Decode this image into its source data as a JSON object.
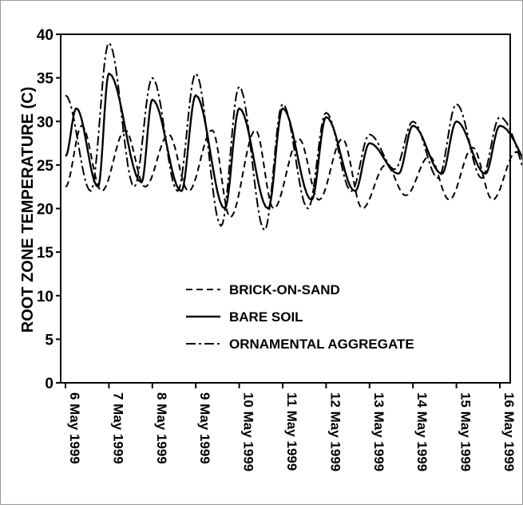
{
  "chart_data": {
    "type": "line",
    "title": "",
    "xlabel": "",
    "ylabel": "ROOT ZONE TEMPERATURE (C)",
    "ylim": [
      0,
      40
    ],
    "yticks": [
      "0",
      "5",
      "10",
      "15",
      "20",
      "25",
      "30",
      "35",
      "40"
    ],
    "xlim": [
      "1999-05-06",
      "1999-05-16"
    ],
    "xticks": [
      "6 May 1999",
      "7 May 1999",
      "8 May 1999",
      "9 May 1999",
      "10 May 1999",
      "11 May 1999",
      "12 May 1999",
      "13 May 1999",
      "14 May 1999",
      "15 May 1999",
      "16 May 1999"
    ],
    "grid": false,
    "legend_position": "center-left",
    "series": [
      {
        "name": "BRICK-ON-SAND",
        "line_style": "dashed",
        "peaks": [
          [
            "1999-05-06 00:00",
            22.5
          ],
          [
            "1999-05-06 09:00",
            29.5
          ],
          [
            "1999-05-06 20:00",
            22.0
          ],
          [
            "1999-05-07 09:00",
            29.0
          ],
          [
            "1999-05-07 20:00",
            22.5
          ],
          [
            "1999-05-08 09:00",
            28.5
          ],
          [
            "1999-05-08 20:00",
            22.0
          ],
          [
            "1999-05-09 09:00",
            29.0
          ],
          [
            "1999-05-09 19:00",
            19.0
          ],
          [
            "1999-05-10 09:00",
            29.0
          ],
          [
            "1999-05-10 19:00",
            20.0
          ],
          [
            "1999-05-11 09:00",
            28.0
          ],
          [
            "1999-05-11 20:00",
            21.0
          ],
          [
            "1999-05-12 09:00",
            28.0
          ],
          [
            "1999-05-12 20:00",
            20.0
          ],
          [
            "1999-05-13 09:00",
            25.0
          ],
          [
            "1999-05-13 20:00",
            21.5
          ],
          [
            "1999-05-14 09:00",
            26.0
          ],
          [
            "1999-05-14 20:00",
            21.0
          ],
          [
            "1999-05-15 09:00",
            27.0
          ],
          [
            "1999-05-15 20:00",
            21.0
          ],
          [
            "1999-05-16 09:00",
            26.5
          ],
          [
            "1999-05-16 23:00",
            21.0
          ]
        ]
      },
      {
        "name": "BARE SOIL",
        "line_style": "solid",
        "peaks": [
          [
            "1999-05-06 00:00",
            26.0
          ],
          [
            "1999-05-06 06:00",
            31.5
          ],
          [
            "1999-05-06 18:00",
            22.5
          ],
          [
            "1999-05-07 00:00",
            35.5
          ],
          [
            "1999-05-07 18:00",
            23.0
          ],
          [
            "1999-05-08 00:00",
            32.5
          ],
          [
            "1999-05-08 16:00",
            22.0
          ],
          [
            "1999-05-09 00:00",
            33.0
          ],
          [
            "1999-05-09 16:00",
            20.0
          ],
          [
            "1999-05-10 00:00",
            31.5
          ],
          [
            "1999-05-10 16:00",
            20.0
          ],
          [
            "1999-05-11 00:00",
            31.5
          ],
          [
            "1999-05-11 16:00",
            21.0
          ],
          [
            "1999-05-12 00:00",
            30.5
          ],
          [
            "1999-05-12 16:00",
            22.0
          ],
          [
            "1999-05-13 00:00",
            27.5
          ],
          [
            "1999-05-13 16:00",
            24.0
          ],
          [
            "1999-05-14 00:00",
            29.5
          ],
          [
            "1999-05-14 16:00",
            24.0
          ],
          [
            "1999-05-15 00:00",
            30.0
          ],
          [
            "1999-05-15 16:00",
            24.0
          ],
          [
            "1999-05-16 00:00",
            29.5
          ],
          [
            "1999-05-16 23:00",
            23.0
          ]
        ]
      },
      {
        "name": "ORNAMENTAL AGGREGATE",
        "line_style": "dash-dot",
        "peaks": [
          [
            "1999-05-06 00:00",
            33.0
          ],
          [
            "1999-05-06 14:00",
            22.0
          ],
          [
            "1999-05-07 00:00",
            39.0
          ],
          [
            "1999-05-07 14:00",
            22.5
          ],
          [
            "1999-05-08 00:00",
            35.0
          ],
          [
            "1999-05-08 14:00",
            22.0
          ],
          [
            "1999-05-09 00:00",
            35.5
          ],
          [
            "1999-05-09 14:00",
            18.0
          ],
          [
            "1999-05-10 00:00",
            34.0
          ],
          [
            "1999-05-10 14:00",
            17.5
          ],
          [
            "1999-05-11 00:00",
            32.0
          ],
          [
            "1999-05-11 14:00",
            20.0
          ],
          [
            "1999-05-12 00:00",
            31.0
          ],
          [
            "1999-05-12 14:00",
            22.0
          ],
          [
            "1999-05-13 00:00",
            28.5
          ],
          [
            "1999-05-13 14:00",
            24.5
          ],
          [
            "1999-05-14 00:00",
            30.0
          ],
          [
            "1999-05-14 14:00",
            23.5
          ],
          [
            "1999-05-15 00:00",
            32.0
          ],
          [
            "1999-05-15 14:00",
            23.5
          ],
          [
            "1999-05-16 00:00",
            30.5
          ],
          [
            "1999-05-16 23:00",
            20.5
          ]
        ]
      }
    ]
  }
}
